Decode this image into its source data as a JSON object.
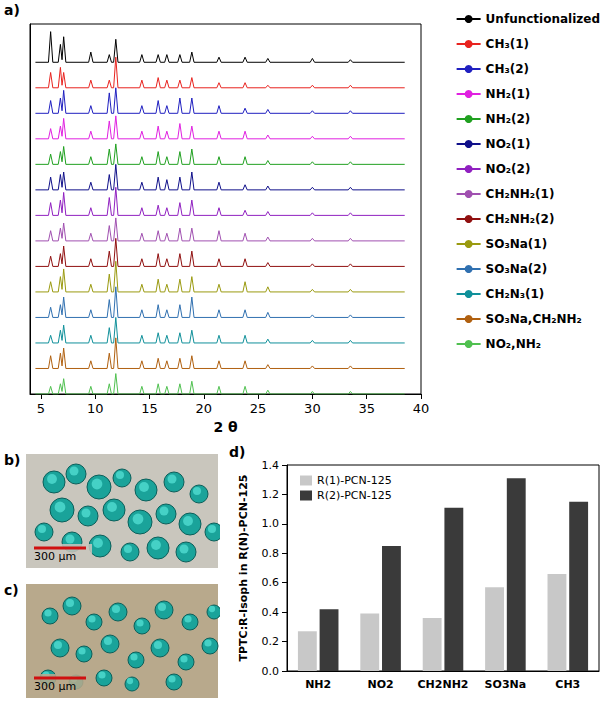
{
  "chart_data": [
    {
      "type": "line",
      "panel_label": "a)",
      "xlabel": "2 θ",
      "xlim": [
        4,
        40
      ],
      "xticks": [
        5,
        10,
        15,
        20,
        25,
        30,
        35,
        40
      ],
      "ylim": [
        0,
        14.5
      ],
      "tick_labels": "x",
      "grid": false,
      "legend": "right",
      "x": [
        4.5,
        5.7,
        5.9,
        6.1,
        6.6,
        6.8,
        6.95,
        7.1,
        7.3,
        9.4,
        9.6,
        9.8,
        11.1,
        11.3,
        11.5,
        11.7,
        11.9,
        12.1,
        14.1,
        14.3,
        14.5,
        15.6,
        15.8,
        16.0,
        16.4,
        16.6,
        16.8,
        17.6,
        17.8,
        18.0,
        18.7,
        18.9,
        19.1,
        21.2,
        21.4,
        21.6,
        23.6,
        23.8,
        24.0,
        25.7,
        25.9,
        26.1,
        29.8,
        30.0,
        30.2,
        33.3,
        33.5,
        33.7,
        38.5
      ],
      "series": [
        {
          "name": "Unfunctionalized",
          "color": "#000000",
          "values": [
            13,
            13,
            14.2,
            13,
            13,
            13.7,
            13.1,
            14,
            13,
            13,
            13.4,
            13,
            13,
            13.3,
            13,
            13,
            13.9,
            13,
            13,
            13.3,
            13,
            13,
            13.3,
            13,
            13,
            13.3,
            13,
            13,
            13.3,
            13,
            13,
            13.4,
            13,
            13,
            13.2,
            13,
            13,
            13.2,
            13,
            13,
            13.15,
            13,
            13,
            13.15,
            13,
            13,
            13.1,
            13,
            13
          ]
        },
        {
          "name": "CH₃(1)",
          "color": "#e8231f",
          "values": [
            12,
            12,
            12.6,
            12,
            12,
            12.8,
            12.1,
            12.6,
            12,
            12,
            12.3,
            12,
            12,
            12.3,
            12,
            12,
            13.2,
            12,
            12,
            12.3,
            12,
            12,
            12.4,
            12,
            12,
            12.3,
            12,
            12,
            12.3,
            12,
            12,
            12.4,
            12,
            12,
            12.2,
            12,
            12,
            12.2,
            12,
            12,
            12.1,
            12,
            12,
            12.1,
            12,
            12,
            12.1,
            12,
            12
          ]
        },
        {
          "name": "CH₃(2)",
          "color": "#2020c0",
          "values": [
            11,
            11,
            11.5,
            11,
            11,
            11.6,
            11.1,
            11.9,
            11,
            11,
            11.3,
            11,
            11,
            11.8,
            11,
            11,
            12,
            11,
            11,
            11.3,
            11,
            11,
            11.5,
            11,
            11,
            11.3,
            11,
            11,
            11.6,
            11,
            11,
            11.6,
            11,
            11,
            11.3,
            11,
            11,
            11.2,
            11,
            11,
            11.15,
            11,
            11,
            11.1,
            11,
            11,
            11.1,
            11,
            11
          ]
        },
        {
          "name": "NH₂(1)",
          "color": "#e020e0",
          "values": [
            10,
            10,
            10.4,
            10,
            10,
            10.5,
            10.1,
            10.8,
            10,
            10,
            10.3,
            10,
            10,
            10.7,
            10,
            10,
            10.9,
            10,
            10,
            10.3,
            10,
            10,
            10.5,
            10,
            10,
            10.3,
            10,
            10,
            10.6,
            10,
            10,
            10.5,
            10,
            10,
            10.3,
            10,
            10,
            10.3,
            10,
            10,
            10.15,
            10,
            10,
            10.1,
            10,
            10,
            10.1,
            10,
            10
          ]
        },
        {
          "name": "NH₂(2)",
          "color": "#20a020",
          "values": [
            9,
            9,
            9.4,
            9,
            9,
            9.5,
            9.1,
            9.7,
            9,
            9,
            9.3,
            9,
            9,
            9.6,
            9,
            9,
            9.8,
            9,
            9,
            9.3,
            9,
            9,
            9.5,
            9,
            9,
            9.3,
            9,
            9,
            9.5,
            9,
            9,
            9.6,
            9,
            9,
            9.3,
            9,
            9,
            9.3,
            9,
            9,
            9.15,
            9,
            9,
            9.1,
            9,
            9,
            9.1,
            9,
            9
          ]
        },
        {
          "name": "NO₂(1)",
          "color": "#10108a",
          "values": [
            8,
            8,
            8.5,
            8,
            8,
            8.6,
            8.1,
            8.7,
            8,
            8,
            8.3,
            8,
            8,
            8.6,
            8,
            8,
            9,
            8,
            8,
            8.3,
            8,
            8,
            8.5,
            8,
            8,
            8.4,
            8,
            8,
            8.5,
            8,
            8,
            8.7,
            8,
            8,
            8.3,
            8,
            8,
            8.2,
            8,
            8,
            8.15,
            8,
            8,
            8.1,
            8,
            8,
            8.1,
            8,
            8
          ]
        },
        {
          "name": "NO₂(2)",
          "color": "#9020c0",
          "values": [
            7,
            7,
            7.5,
            7,
            7,
            7.6,
            7.1,
            7.9,
            7,
            7,
            7.3,
            7,
            7,
            7.7,
            7,
            7,
            8.1,
            7,
            7,
            7.3,
            7,
            7,
            7.4,
            7,
            7,
            7.3,
            7,
            7,
            7.5,
            7,
            7,
            7.6,
            7,
            7,
            7.3,
            7,
            7,
            7.2,
            7,
            7,
            7.15,
            7,
            7,
            7.1,
            7,
            7,
            7.1,
            7,
            7
          ]
        },
        {
          "name": "CH₂NH₂(1)",
          "color": "#a050b0",
          "values": [
            6,
            6,
            6.4,
            6,
            6,
            6.5,
            6.1,
            6.7,
            6,
            6,
            6.3,
            6,
            6,
            6.6,
            6,
            6,
            6.9,
            6,
            6,
            6.3,
            6,
            6,
            6.4,
            6,
            6,
            6.3,
            6,
            6,
            6.5,
            6,
            6,
            6.5,
            6,
            6,
            6.4,
            6,
            6,
            6.3,
            6,
            6,
            6.15,
            6,
            6,
            6.1,
            6,
            6,
            6.1,
            6,
            6
          ]
        },
        {
          "name": "CH₂NH₂(2)",
          "color": "#901010",
          "values": [
            5,
            5,
            5.4,
            5,
            5,
            5.5,
            5.1,
            5.8,
            5,
            5,
            5.3,
            5,
            5,
            5.6,
            5,
            5,
            6.1,
            5,
            5,
            5.3,
            5,
            5,
            5.5,
            5,
            5,
            5.3,
            5,
            5,
            5.5,
            5,
            5,
            5.6,
            5,
            5,
            5.3,
            5,
            5,
            5.3,
            5,
            5,
            5.15,
            5,
            5,
            5.1,
            5,
            5,
            5.1,
            5,
            5
          ]
        },
        {
          "name": "SO₃Na(1)",
          "color": "#9a9a10",
          "values": [
            4,
            4,
            4.4,
            4,
            4,
            4.6,
            4.1,
            4.9,
            4,
            4,
            4.3,
            4,
            4,
            4.7,
            4,
            4,
            5.2,
            4,
            4,
            4.3,
            4,
            4,
            4.5,
            4,
            4,
            4.3,
            4,
            4,
            4.5,
            4,
            4,
            4.6,
            4,
            4,
            4.3,
            4,
            4,
            4.4,
            4,
            4,
            4.2,
            4,
            4,
            4.1,
            4,
            4,
            4.1,
            4,
            4
          ]
        },
        {
          "name": "SO₃Na(2)",
          "color": "#3070b0",
          "values": [
            3,
            3,
            3.4,
            3,
            3,
            3.5,
            3.1,
            3.8,
            3,
            3,
            3.3,
            3,
            3,
            3.7,
            3,
            3,
            4.2,
            3,
            3,
            3.3,
            3,
            3,
            3.5,
            3,
            3,
            3.3,
            3,
            3,
            3.5,
            3,
            3,
            3.8,
            3,
            3,
            3.3,
            3,
            3,
            3.3,
            3,
            3,
            3.2,
            3,
            3,
            3.1,
            3,
            3,
            3.1,
            3,
            3
          ]
        },
        {
          "name": "CH₂N₃(1)",
          "color": "#10909a",
          "values": [
            2,
            2,
            2.3,
            2,
            2,
            2.5,
            2.1,
            2.7,
            2,
            2,
            2.3,
            2,
            2,
            2.6,
            2,
            2,
            3,
            2,
            2,
            2.3,
            2,
            2,
            2.4,
            2,
            2,
            2.3,
            2,
            2,
            2.4,
            2,
            2,
            2.5,
            2,
            2,
            2.3,
            2,
            2,
            2.3,
            2,
            2,
            2.15,
            2,
            2,
            2.1,
            2,
            2,
            2.1,
            2,
            2
          ]
        },
        {
          "name": "SO₃Na,CH₂NH₂",
          "color": "#b06010",
          "values": [
            1,
            1,
            1.5,
            1,
            1,
            1.6,
            1.1,
            1.8,
            1,
            1,
            1.3,
            1,
            1,
            1.6,
            1,
            1,
            2.2,
            1,
            1,
            1.3,
            1,
            1,
            1.4,
            1,
            1,
            1.3,
            1,
            1,
            1.4,
            1,
            1,
            1.5,
            1,
            1,
            1.3,
            1,
            1,
            1.3,
            1,
            1,
            1.15,
            1,
            1,
            1.1,
            1,
            1,
            1.1,
            1,
            1
          ]
        },
        {
          "name": "NO₂,NH₂",
          "color": "#50c050",
          "values": [
            0,
            0,
            0.3,
            0,
            0,
            0.4,
            0.1,
            0.6,
            0,
            0,
            0.3,
            0,
            0,
            0.4,
            0,
            0,
            0.8,
            0,
            0,
            0.3,
            0,
            0,
            0.4,
            0,
            0,
            0.3,
            0,
            0,
            0.4,
            0,
            0,
            0.5,
            0,
            0,
            0.3,
            0,
            0,
            0.3,
            0,
            0,
            0.15,
            0,
            0,
            0.1,
            0,
            0,
            0.1,
            0,
            0
          ]
        }
      ]
    },
    {
      "type": "bar",
      "panel_label": "d)",
      "ylabel": "TPTC:R-Isoph in R(N)-PCN-125",
      "categories": [
        "NH2",
        "NO2",
        "CH2NH2",
        "SO3Na",
        "CH3"
      ],
      "ylim": [
        0,
        1.4
      ],
      "yticks": [
        {
          "value": 0,
          "label": "0.0"
        },
        {
          "value": 0.2,
          "label": "0.2"
        },
        {
          "value": 0.4,
          "label": "0.4"
        },
        {
          "value": 0.6,
          "label": "0.6"
        },
        {
          "value": 0.8,
          "label": "0.8"
        },
        {
          "value": 1.0,
          "label": "1.0"
        },
        {
          "value": 1.2,
          "label": "1.2"
        },
        {
          "value": 1.4,
          "label": "1.4"
        }
      ],
      "grid": false,
      "legend": "upper left",
      "series": [
        {
          "name": "R(1)-PCN-125",
          "color": "#c8c8c8",
          "values": [
            0.27,
            0.39,
            0.36,
            0.57,
            0.66
          ]
        },
        {
          "name": "R(2)-PCN-125",
          "color": "#3a3a3a",
          "values": [
            0.42,
            0.85,
            1.11,
            1.31,
            1.15
          ]
        }
      ]
    }
  ],
  "images": [
    {
      "panel_label": "b)",
      "scale_bar": "300 µm"
    },
    {
      "panel_label": "c)",
      "scale_bar": "300 µm"
    }
  ]
}
